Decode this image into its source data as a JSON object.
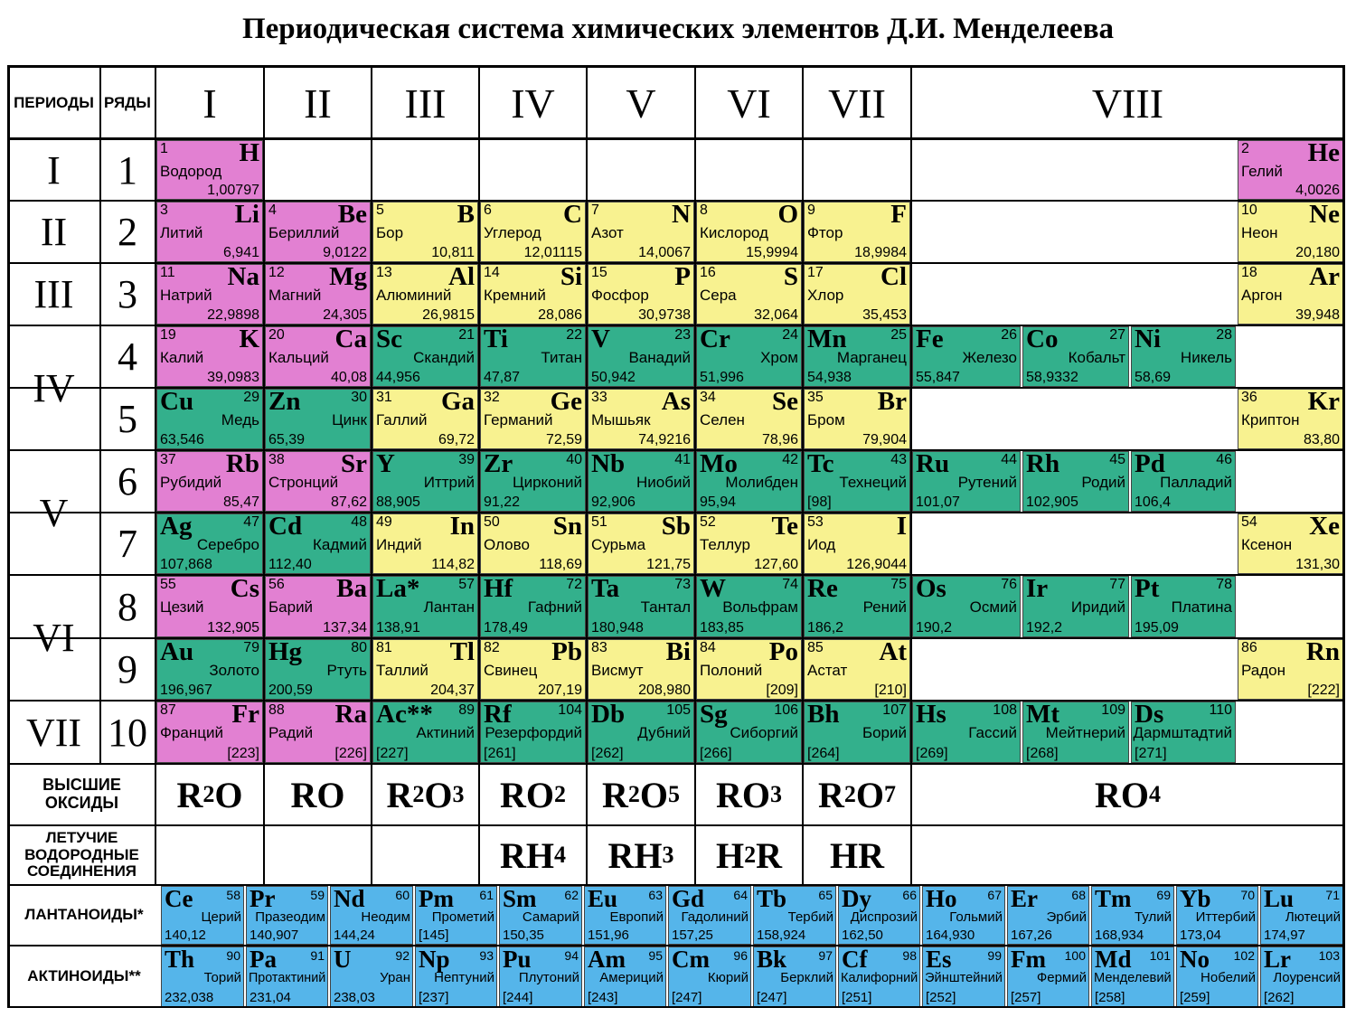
{
  "title": "Периодическая система химических элементов Д.И. Менделеева",
  "headers": {
    "periods": "ПЕРИОДЫ",
    "rows": "РЯДЫ"
  },
  "groups": [
    "I",
    "II",
    "III",
    "IV",
    "V",
    "VI",
    "VII",
    "VIII"
  ],
  "periods": [
    {
      "label": "I",
      "rows": [
        1
      ]
    },
    {
      "label": "II",
      "rows": [
        2
      ]
    },
    {
      "label": "III",
      "rows": [
        3
      ]
    },
    {
      "label": "IV",
      "rows": [
        4,
        5
      ]
    },
    {
      "label": "V",
      "rows": [
        6,
        7
      ]
    },
    {
      "label": "VI",
      "rows": [
        8,
        9
      ]
    },
    {
      "label": "VII",
      "rows": [
        10
      ]
    }
  ],
  "row_labels": [
    "1",
    "2",
    "3",
    "4",
    "5",
    "6",
    "7",
    "8",
    "9",
    "10"
  ],
  "elements": [
    {
      "n": "1",
      "s": "H",
      "name": "Водород",
      "m": "1,00797",
      "row": 1,
      "col": 0,
      "align": "R",
      "color": "pink"
    },
    {
      "n": "2",
      "s": "He",
      "name": "Гелий",
      "m": "4,0026",
      "row": 1,
      "col": 10,
      "align": "R",
      "color": "pink"
    },
    {
      "n": "3",
      "s": "Li",
      "name": "Литий",
      "m": "6,941",
      "row": 2,
      "col": 0,
      "align": "R",
      "color": "pink"
    },
    {
      "n": "4",
      "s": "Be",
      "name": "Бериллий",
      "m": "9,0122",
      "row": 2,
      "col": 1,
      "align": "R",
      "color": "pink"
    },
    {
      "n": "5",
      "s": "B",
      "name": "Бор",
      "m": "10,811",
      "row": 2,
      "col": 2,
      "align": "R",
      "color": "yellow"
    },
    {
      "n": "6",
      "s": "C",
      "name": "Углерод",
      "m": "12,01115",
      "row": 2,
      "col": 3,
      "align": "R",
      "color": "yellow"
    },
    {
      "n": "7",
      "s": "N",
      "name": "Азот",
      "m": "14,0067",
      "row": 2,
      "col": 4,
      "align": "R",
      "color": "yellow"
    },
    {
      "n": "8",
      "s": "O",
      "name": "Кислород",
      "m": "15,9994",
      "row": 2,
      "col": 5,
      "align": "R",
      "color": "yellow"
    },
    {
      "n": "9",
      "s": "F",
      "name": "Фтор",
      "m": "18,9984",
      "row": 2,
      "col": 6,
      "align": "R",
      "color": "yellow"
    },
    {
      "n": "10",
      "s": "Ne",
      "name": "Неон",
      "m": "20,180",
      "row": 2,
      "col": 10,
      "align": "R",
      "color": "yellow"
    },
    {
      "n": "11",
      "s": "Na",
      "name": "Натрий",
      "m": "22,9898",
      "row": 3,
      "col": 0,
      "align": "R",
      "color": "pink"
    },
    {
      "n": "12",
      "s": "Mg",
      "name": "Магний",
      "m": "24,305",
      "row": 3,
      "col": 1,
      "align": "R",
      "color": "pink"
    },
    {
      "n": "13",
      "s": "Al",
      "name": "Алюминий",
      "m": "26,9815",
      "row": 3,
      "col": 2,
      "align": "R",
      "color": "yellow"
    },
    {
      "n": "14",
      "s": "Si",
      "name": "Кремний",
      "m": "28,086",
      "row": 3,
      "col": 3,
      "align": "R",
      "color": "yellow"
    },
    {
      "n": "15",
      "s": "P",
      "name": "Фосфор",
      "m": "30,9738",
      "row": 3,
      "col": 4,
      "align": "R",
      "color": "yellow"
    },
    {
      "n": "16",
      "s": "S",
      "name": "Сера",
      "m": "32,064",
      "row": 3,
      "col": 5,
      "align": "R",
      "color": "yellow"
    },
    {
      "n": "17",
      "s": "Cl",
      "name": "Хлор",
      "m": "35,453",
      "row": 3,
      "col": 6,
      "align": "R",
      "color": "yellow"
    },
    {
      "n": "18",
      "s": "Ar",
      "name": "Аргон",
      "m": "39,948",
      "row": 3,
      "col": 10,
      "align": "R",
      "color": "yellow"
    },
    {
      "n": "19",
      "s": "K",
      "name": "Калий",
      "m": "39,0983",
      "row": 4,
      "col": 0,
      "align": "R",
      "color": "pink"
    },
    {
      "n": "20",
      "s": "Ca",
      "name": "Кальций",
      "m": "40,08",
      "row": 4,
      "col": 1,
      "align": "R",
      "color": "pink"
    },
    {
      "n": "21",
      "s": "Sc",
      "name": "Скандий",
      "m": "44,956",
      "row": 4,
      "col": 2,
      "align": "L",
      "color": "green"
    },
    {
      "n": "22",
      "s": "Ti",
      "name": "Титан",
      "m": "47,87",
      "row": 4,
      "col": 3,
      "align": "L",
      "color": "green"
    },
    {
      "n": "23",
      "s": "V",
      "name": "Ванадий",
      "m": "50,942",
      "row": 4,
      "col": 4,
      "align": "L",
      "color": "green"
    },
    {
      "n": "24",
      "s": "Cr",
      "name": "Хром",
      "m": "51,996",
      "row": 4,
      "col": 5,
      "align": "L",
      "color": "green"
    },
    {
      "n": "25",
      "s": "Mn",
      "name": "Марганец",
      "m": "54,938",
      "row": 4,
      "col": 6,
      "align": "L",
      "color": "green"
    },
    {
      "n": "26",
      "s": "Fe",
      "name": "Железо",
      "m": "55,847",
      "row": 4,
      "col": 7,
      "align": "L",
      "color": "green"
    },
    {
      "n": "27",
      "s": "Co",
      "name": "Кобальт",
      "m": "58,9332",
      "row": 4,
      "col": 8,
      "align": "L",
      "color": "green"
    },
    {
      "n": "28",
      "s": "Ni",
      "name": "Никель",
      "m": "58,69",
      "row": 4,
      "col": 9,
      "align": "L",
      "color": "green"
    },
    {
      "n": "29",
      "s": "Cu",
      "name": "Медь",
      "m": "63,546",
      "row": 5,
      "col": 0,
      "align": "L",
      "color": "green"
    },
    {
      "n": "30",
      "s": "Zn",
      "name": "Цинк",
      "m": "65,39",
      "row": 5,
      "col": 1,
      "align": "L",
      "color": "green"
    },
    {
      "n": "31",
      "s": "Ga",
      "name": "Галлий",
      "m": "69,72",
      "row": 5,
      "col": 2,
      "align": "R",
      "color": "yellow"
    },
    {
      "n": "32",
      "s": "Ge",
      "name": "Германий",
      "m": "72,59",
      "row": 5,
      "col": 3,
      "align": "R",
      "color": "yellow"
    },
    {
      "n": "33",
      "s": "As",
      "name": "Мышьяк",
      "m": "74,9216",
      "row": 5,
      "col": 4,
      "align": "R",
      "color": "yellow"
    },
    {
      "n": "34",
      "s": "Se",
      "name": "Селен",
      "m": "78,96",
      "row": 5,
      "col": 5,
      "align": "R",
      "color": "yellow"
    },
    {
      "n": "35",
      "s": "Br",
      "name": "Бром",
      "m": "79,904",
      "row": 5,
      "col": 6,
      "align": "R",
      "color": "yellow"
    },
    {
      "n": "36",
      "s": "Kr",
      "name": "Криптон",
      "m": "83,80",
      "row": 5,
      "col": 10,
      "align": "R",
      "color": "yellow"
    },
    {
      "n": "37",
      "s": "Rb",
      "name": "Рубидий",
      "m": "85,47",
      "row": 6,
      "col": 0,
      "align": "R",
      "color": "pink"
    },
    {
      "n": "38",
      "s": "Sr",
      "name": "Стронций",
      "m": "87,62",
      "row": 6,
      "col": 1,
      "align": "R",
      "color": "pink"
    },
    {
      "n": "39",
      "s": "Y",
      "name": "Иттрий",
      "m": "88,905",
      "row": 6,
      "col": 2,
      "align": "L",
      "color": "green"
    },
    {
      "n": "40",
      "s": "Zr",
      "name": "Цирконий",
      "m": "91,22",
      "row": 6,
      "col": 3,
      "align": "L",
      "color": "green"
    },
    {
      "n": "41",
      "s": "Nb",
      "name": "Ниобий",
      "m": "92,906",
      "row": 6,
      "col": 4,
      "align": "L",
      "color": "green"
    },
    {
      "n": "42",
      "s": "Mo",
      "name": "Молибден",
      "m": "95,94",
      "row": 6,
      "col": 5,
      "align": "L",
      "color": "green"
    },
    {
      "n": "43",
      "s": "Tc",
      "name": "Технеций",
      "m": "[98]",
      "row": 6,
      "col": 6,
      "align": "L",
      "color": "green"
    },
    {
      "n": "44",
      "s": "Ru",
      "name": "Рутений",
      "m": "101,07",
      "row": 6,
      "col": 7,
      "align": "L",
      "color": "green"
    },
    {
      "n": "45",
      "s": "Rh",
      "name": "Родий",
      "m": "102,905",
      "row": 6,
      "col": 8,
      "align": "L",
      "color": "green"
    },
    {
      "n": "46",
      "s": "Pd",
      "name": "Палладий",
      "m": "106,4",
      "row": 6,
      "col": 9,
      "align": "L",
      "color": "green"
    },
    {
      "n": "47",
      "s": "Ag",
      "name": "Серебро",
      "m": "107,868",
      "row": 7,
      "col": 0,
      "align": "L",
      "color": "green"
    },
    {
      "n": "48",
      "s": "Cd",
      "name": "Кадмий",
      "m": "112,40",
      "row": 7,
      "col": 1,
      "align": "L",
      "color": "green"
    },
    {
      "n": "49",
      "s": "In",
      "name": "Индий",
      "m": "114,82",
      "row": 7,
      "col": 2,
      "align": "R",
      "color": "yellow"
    },
    {
      "n": "50",
      "s": "Sn",
      "name": "Олово",
      "m": "118,69",
      "row": 7,
      "col": 3,
      "align": "R",
      "color": "yellow"
    },
    {
      "n": "51",
      "s": "Sb",
      "name": "Сурьма",
      "m": "121,75",
      "row": 7,
      "col": 4,
      "align": "R",
      "color": "yellow"
    },
    {
      "n": "52",
      "s": "Te",
      "name": "Теллур",
      "m": "127,60",
      "row": 7,
      "col": 5,
      "align": "R",
      "color": "yellow"
    },
    {
      "n": "53",
      "s": "I",
      "name": "Иод",
      "m": "126,9044",
      "row": 7,
      "col": 6,
      "align": "R",
      "color": "yellow"
    },
    {
      "n": "54",
      "s": "Xe",
      "name": "Ксенон",
      "m": "131,30",
      "row": 7,
      "col": 10,
      "align": "R",
      "color": "yellow"
    },
    {
      "n": "55",
      "s": "Cs",
      "name": "Цезий",
      "m": "132,905",
      "row": 8,
      "col": 0,
      "align": "R",
      "color": "pink"
    },
    {
      "n": "56",
      "s": "Ba",
      "name": "Барий",
      "m": "137,34",
      "row": 8,
      "col": 1,
      "align": "R",
      "color": "pink"
    },
    {
      "n": "57",
      "s": "La*",
      "name": "Лантан",
      "m": "138,91",
      "row": 8,
      "col": 2,
      "align": "L",
      "color": "green"
    },
    {
      "n": "72",
      "s": "Hf",
      "name": "Гафний",
      "m": "178,49",
      "row": 8,
      "col": 3,
      "align": "L",
      "color": "green"
    },
    {
      "n": "73",
      "s": "Ta",
      "name": "Тантал",
      "m": "180,948",
      "row": 8,
      "col": 4,
      "align": "L",
      "color": "green"
    },
    {
      "n": "74",
      "s": "W",
      "name": "Вольфрам",
      "m": "183,85",
      "row": 8,
      "col": 5,
      "align": "L",
      "color": "green"
    },
    {
      "n": "75",
      "s": "Re",
      "name": "Рений",
      "m": "186,2",
      "row": 8,
      "col": 6,
      "align": "L",
      "color": "green"
    },
    {
      "n": "76",
      "s": "Os",
      "name": "Осмий",
      "m": "190,2",
      "row": 8,
      "col": 7,
      "align": "L",
      "color": "green"
    },
    {
      "n": "77",
      "s": "Ir",
      "name": "Иридий",
      "m": "192,2",
      "row": 8,
      "col": 8,
      "align": "L",
      "color": "green"
    },
    {
      "n": "78",
      "s": "Pt",
      "name": "Платина",
      "m": "195,09",
      "row": 8,
      "col": 9,
      "align": "L",
      "color": "green"
    },
    {
      "n": "79",
      "s": "Au",
      "name": "Золото",
      "m": "196,967",
      "row": 9,
      "col": 0,
      "align": "L",
      "color": "green"
    },
    {
      "n": "80",
      "s": "Hg",
      "name": "Ртуть",
      "m": "200,59",
      "row": 9,
      "col": 1,
      "align": "L",
      "color": "green"
    },
    {
      "n": "81",
      "s": "Tl",
      "name": "Таллий",
      "m": "204,37",
      "row": 9,
      "col": 2,
      "align": "R",
      "color": "yellow"
    },
    {
      "n": "82",
      "s": "Pb",
      "name": "Свинец",
      "m": "207,19",
      "row": 9,
      "col": 3,
      "align": "R",
      "color": "yellow"
    },
    {
      "n": "83",
      "s": "Bi",
      "name": "Висмут",
      "m": "208,980",
      "row": 9,
      "col": 4,
      "align": "R",
      "color": "yellow"
    },
    {
      "n": "84",
      "s": "Po",
      "name": "Полоний",
      "m": "[209]",
      "row": 9,
      "col": 5,
      "align": "R",
      "color": "yellow"
    },
    {
      "n": "85",
      "s": "At",
      "name": "Астат",
      "m": "[210]",
      "row": 9,
      "col": 6,
      "align": "R",
      "color": "yellow"
    },
    {
      "n": "86",
      "s": "Rn",
      "name": "Радон",
      "m": "[222]",
      "row": 9,
      "col": 10,
      "align": "R",
      "color": "yellow"
    },
    {
      "n": "87",
      "s": "Fr",
      "name": "Франций",
      "m": "[223]",
      "row": 10,
      "col": 0,
      "align": "R",
      "color": "pink"
    },
    {
      "n": "88",
      "s": "Ra",
      "name": "Радий",
      "m": "[226]",
      "row": 10,
      "col": 1,
      "align": "R",
      "color": "pink"
    },
    {
      "n": "89",
      "s": "Ac**",
      "name": "Актиний",
      "m": "[227]",
      "row": 10,
      "col": 2,
      "align": "L",
      "color": "green"
    },
    {
      "n": "104",
      "s": "Rf",
      "name": "Резерфордий",
      "m": "[261]",
      "row": 10,
      "col": 3,
      "align": "L",
      "color": "green"
    },
    {
      "n": "105",
      "s": "Db",
      "name": "Дубний",
      "m": "[262]",
      "row": 10,
      "col": 4,
      "align": "L",
      "color": "green"
    },
    {
      "n": "106",
      "s": "Sg",
      "name": "Сиборгий",
      "m": "[266]",
      "row": 10,
      "col": 5,
      "align": "L",
      "color": "green"
    },
    {
      "n": "107",
      "s": "Bh",
      "name": "Борий",
      "m": "[264]",
      "row": 10,
      "col": 6,
      "align": "L",
      "color": "green"
    },
    {
      "n": "108",
      "s": "Hs",
      "name": "Гассий",
      "m": "[269]",
      "row": 10,
      "col": 7,
      "align": "L",
      "color": "green"
    },
    {
      "n": "109",
      "s": "Mt",
      "name": "Мейтнерий",
      "m": "[268]",
      "row": 10,
      "col": 8,
      "align": "L",
      "color": "green"
    },
    {
      "n": "110",
      "s": "Ds",
      "name": "Дармштадтий",
      "m": "[271]",
      "row": 10,
      "col": 9,
      "align": "L",
      "color": "green"
    }
  ],
  "oxides": {
    "label": "ВЫСШИЕ ОКСИДЫ",
    "items": [
      [
        "R",
        "2",
        "O",
        ""
      ],
      [
        "RO",
        "",
        "",
        ""
      ],
      [
        "R",
        "2",
        "O",
        "3"
      ],
      [
        "RO",
        "2",
        "",
        ""
      ],
      [
        "R",
        "2",
        "O",
        "5"
      ],
      [
        "RO",
        "3",
        "",
        ""
      ],
      [
        "R",
        "2",
        "O",
        "7"
      ],
      [
        "RO",
        "4",
        "",
        ""
      ]
    ]
  },
  "hydrides": {
    "label": "ЛЕТУЧИЕ ВОДОРОДНЫЕ СОЕДИНЕНИЯ",
    "items": [
      [
        "RH",
        "4",
        "",
        ""
      ],
      [
        "RH",
        "3",
        "",
        ""
      ],
      [
        "H",
        "2",
        "R",
        ""
      ],
      [
        "HR",
        "",
        "",
        ""
      ]
    ]
  },
  "lanthanides": {
    "label": "ЛАНТАНОИДЫ*",
    "items": [
      {
        "n": "58",
        "s": "Ce",
        "name": "Церий",
        "m": "140,12"
      },
      {
        "n": "59",
        "s": "Pr",
        "name": "Празеодим",
        "m": "140,907"
      },
      {
        "n": "60",
        "s": "Nd",
        "name": "Неодим",
        "m": "144,24"
      },
      {
        "n": "61",
        "s": "Pm",
        "name": "Прометий",
        "m": "[145]"
      },
      {
        "n": "62",
        "s": "Sm",
        "name": "Самарий",
        "m": "150,35"
      },
      {
        "n": "63",
        "s": "Eu",
        "name": "Европий",
        "m": "151,96"
      },
      {
        "n": "64",
        "s": "Gd",
        "name": "Гадолиний",
        "m": "157,25"
      },
      {
        "n": "65",
        "s": "Tb",
        "name": "Тербий",
        "m": "158,924"
      },
      {
        "n": "66",
        "s": "Dy",
        "name": "Диспрозий",
        "m": "162,50"
      },
      {
        "n": "67",
        "s": "Ho",
        "name": "Гольмий",
        "m": "164,930"
      },
      {
        "n": "68",
        "s": "Er",
        "name": "Эрбий",
        "m": "167,26"
      },
      {
        "n": "69",
        "s": "Tm",
        "name": "Тулий",
        "m": "168,934"
      },
      {
        "n": "70",
        "s": "Yb",
        "name": "Иттербий",
        "m": "173,04"
      },
      {
        "n": "71",
        "s": "Lu",
        "name": "Лютеций",
        "m": "174,97"
      }
    ]
  },
  "actinides": {
    "label": "АКТИНОИДЫ**",
    "items": [
      {
        "n": "90",
        "s": "Th",
        "name": "Торий",
        "m": "232,038"
      },
      {
        "n": "91",
        "s": "Pa",
        "name": "Протактиний",
        "m": "231,04"
      },
      {
        "n": "92",
        "s": "U",
        "name": "Уран",
        "m": "238,03"
      },
      {
        "n": "93",
        "s": "Np",
        "name": "Нептуний",
        "m": "[237]"
      },
      {
        "n": "94",
        "s": "Pu",
        "name": "Плутоний",
        "m": "[244]"
      },
      {
        "n": "95",
        "s": "Am",
        "name": "Америций",
        "m": "[243]"
      },
      {
        "n": "96",
        "s": "Cm",
        "name": "Кюрий",
        "m": "[247]"
      },
      {
        "n": "97",
        "s": "Bk",
        "name": "Берклий",
        "m": "[247]"
      },
      {
        "n": "98",
        "s": "Cf",
        "name": "Калифорний",
        "m": "[251]"
      },
      {
        "n": "99",
        "s": "Es",
        "name": "Эйнштейний",
        "m": "[252]"
      },
      {
        "n": "100",
        "s": "Fm",
        "name": "Фермий",
        "m": "[257]"
      },
      {
        "n": "101",
        "s": "Md",
        "name": "Менделевий",
        "m": "[258]"
      },
      {
        "n": "102",
        "s": "No",
        "name": "Нобелий",
        "m": "[259]"
      },
      {
        "n": "103",
        "s": "Lr",
        "name": "Лоуренсий",
        "m": "[262]"
      }
    ]
  },
  "colors": {
    "s_block": "#e280d2",
    "p_block": "#f8f290",
    "d_block": "#33b08c",
    "f_block": "#55b5ea"
  }
}
